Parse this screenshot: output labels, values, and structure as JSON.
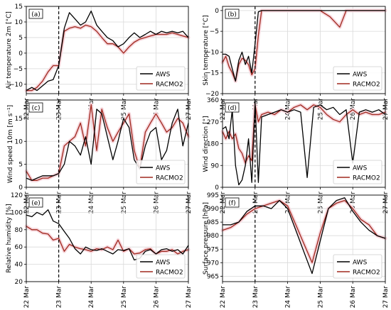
{
  "figure": {
    "x_ticks": [
      "22 Mar",
      "23 Mar",
      "24 Mar",
      "25 Mar",
      "26 Mar",
      "27 Mar"
    ],
    "event_line_x": 23.0,
    "colors": {
      "AWS": "#000000",
      "RACMO2": "#a0281e",
      "grid": "#d9d9d9",
      "shade": "#f6d6dc"
    }
  },
  "chart_data": [
    {
      "type": "line",
      "panel": "(a)",
      "ylabel": "Air temperature 2m [°C]",
      "ylim": [
        -13,
        15
      ],
      "yticks": [
        -10,
        -5,
        0,
        5,
        10,
        15
      ],
      "legend": "bottom-right",
      "grid": true,
      "series": [
        {
          "name": "AWS",
          "x": [
            22.0,
            22.17,
            22.33,
            22.5,
            22.67,
            22.83,
            23.0,
            23.17,
            23.33,
            23.5,
            23.67,
            23.83,
            24.0,
            24.17,
            24.33,
            24.5,
            24.67,
            24.83,
            25.0,
            25.17,
            25.33,
            25.5,
            25.67,
            25.83,
            26.0,
            26.17,
            26.33,
            26.5,
            26.67,
            26.83,
            27.0
          ],
          "y": [
            -12,
            -11,
            -12,
            -10.5,
            -9,
            -8.5,
            -4,
            8,
            13,
            11,
            9,
            10,
            13.5,
            9,
            7,
            5,
            4,
            2,
            3,
            5,
            6.5,
            5,
            6,
            7,
            6,
            7,
            6.5,
            7,
            6.5,
            7,
            5
          ]
        },
        {
          "name": "RACMO2",
          "x": [
            22.0,
            22.17,
            22.33,
            22.5,
            22.67,
            22.83,
            23.0,
            23.17,
            23.33,
            23.5,
            23.67,
            23.83,
            24.0,
            24.17,
            24.33,
            24.5,
            24.67,
            24.83,
            25.0,
            25.17,
            25.33,
            25.5,
            25.67,
            25.83,
            26.0,
            26.17,
            26.33,
            26.5,
            26.67,
            26.83,
            27.0
          ],
          "y": [
            -12,
            -12,
            -11,
            -9,
            -6,
            -4,
            -4,
            7,
            8,
            8.5,
            8,
            9,
            8.5,
            7,
            5,
            3,
            3,
            2,
            0,
            2,
            3.5,
            4.5,
            5,
            5.5,
            6,
            6,
            6,
            6.5,
            6,
            5.5,
            5
          ]
        }
      ]
    },
    {
      "type": "line",
      "panel": "(b)",
      "ylabel": "Skin temperature [°C]",
      "ylim": [
        -20,
        1
      ],
      "yticks": [
        -20,
        -15,
        -10,
        -5,
        0
      ],
      "legend": "bottom-right",
      "grid": true,
      "series": [
        {
          "name": "AWS",
          "x": [
            22.0,
            22.1,
            22.2,
            22.3,
            22.4,
            22.5,
            22.6,
            22.7,
            22.8,
            22.9,
            23.0,
            23.1,
            23.2,
            24.0,
            25.0,
            26.0,
            27.0
          ],
          "y": [
            -10.5,
            -10.5,
            -11,
            -14,
            -17,
            -12,
            -10,
            -13,
            -11,
            -15,
            -8,
            -0.3,
            0,
            0,
            0,
            0,
            0
          ]
        },
        {
          "name": "RACMO2",
          "x": [
            22.0,
            22.1,
            22.2,
            22.3,
            22.4,
            22.5,
            22.6,
            22.7,
            22.8,
            22.9,
            23.0,
            23.1,
            23.2,
            24.0,
            25.0,
            25.3,
            25.6,
            25.8,
            26.0,
            27.0
          ],
          "y": [
            -12.5,
            -11,
            -13.5,
            -15,
            -17,
            -13,
            -11.5,
            -12,
            -13,
            -15.5,
            -14,
            -6,
            0,
            0,
            0,
            -1.5,
            -4,
            0,
            0,
            0
          ]
        }
      ]
    },
    {
      "type": "line",
      "panel": "(c)",
      "ylabel": "Wind speed 10m [m s⁻¹]",
      "ylim": [
        0,
        19
      ],
      "yticks": [
        0,
        5,
        10,
        15
      ],
      "legend": "bottom-right",
      "grid": true,
      "series": [
        {
          "name": "AWS",
          "x": [
            22.0,
            22.17,
            22.33,
            22.5,
            22.67,
            22.83,
            23.0,
            23.17,
            23.33,
            23.5,
            23.67,
            23.83,
            24.0,
            24.17,
            24.33,
            24.5,
            24.67,
            24.83,
            25.0,
            25.17,
            25.33,
            25.5,
            25.67,
            25.83,
            26.0,
            26.17,
            26.33,
            26.5,
            26.67,
            26.83,
            27.0
          ],
          "y": [
            2,
            1.5,
            2,
            2.5,
            2.5,
            2.5,
            3,
            5,
            10,
            9,
            7,
            11,
            5,
            17,
            16,
            11,
            6,
            10,
            15,
            13,
            6,
            4,
            9,
            12,
            13,
            6,
            8,
            14,
            17,
            9,
            14
          ]
        },
        {
          "name": "RACMO2",
          "x": [
            22.0,
            22.17,
            22.33,
            22.5,
            22.67,
            22.83,
            23.0,
            23.17,
            23.33,
            23.5,
            23.67,
            23.83,
            24.0,
            24.17,
            24.33,
            24.5,
            24.67,
            24.83,
            25.0,
            25.17,
            25.33,
            25.5,
            25.67,
            25.83,
            26.0,
            26.17,
            26.33,
            26.5,
            26.67,
            26.83,
            27.0
          ],
          "y": [
            3.5,
            1.5,
            1.5,
            2,
            2,
            2.5,
            3,
            9,
            10,
            11,
            14,
            9,
            18,
            8,
            17,
            13,
            10,
            12,
            14,
            16,
            8,
            4,
            12,
            14,
            16,
            14,
            12,
            13,
            15,
            14,
            11
          ]
        }
      ]
    },
    {
      "type": "line",
      "panel": "(d)",
      "ylabel": "Wind direction [°]",
      "ylim": [
        0,
        360
      ],
      "yticks": [
        0,
        90,
        180,
        270,
        360
      ],
      "legend": "bottom-right",
      "grid": true,
      "series": [
        {
          "name": "AWS",
          "x": [
            22.0,
            22.1,
            22.2,
            22.3,
            22.4,
            22.5,
            22.6,
            22.7,
            22.8,
            22.9,
            23.0,
            23.1,
            23.2,
            23.4,
            23.6,
            23.8,
            24.0,
            24.2,
            24.4,
            24.6,
            24.8,
            25.0,
            25.2,
            25.4,
            25.6,
            25.8,
            26.0,
            26.2,
            26.4,
            26.6,
            26.8,
            27.0
          ],
          "y": [
            240,
            250,
            200,
            320,
            90,
            10,
            30,
            90,
            200,
            20,
            350,
            20,
            290,
            300,
            310,
            320,
            310,
            320,
            310,
            40,
            330,
            340,
            320,
            330,
            300,
            320,
            100,
            310,
            320,
            310,
            320,
            300
          ]
        },
        {
          "name": "RACMO2",
          "x": [
            22.0,
            22.1,
            22.2,
            22.3,
            22.4,
            22.5,
            22.6,
            22.7,
            22.8,
            22.9,
            23.0,
            23.1,
            23.2,
            23.4,
            23.6,
            23.8,
            24.0,
            24.2,
            24.4,
            24.6,
            24.8,
            25.0,
            25.2,
            25.4,
            25.6,
            25.8,
            26.0,
            26.2,
            26.4,
            26.6,
            26.8,
            27.0
          ],
          "y": [
            230,
            200,
            230,
            200,
            220,
            160,
            140,
            100,
            130,
            110,
            340,
            270,
            300,
            310,
            300,
            320,
            310,
            330,
            340,
            320,
            340,
            330,
            300,
            280,
            270,
            300,
            320,
            300,
            310,
            300,
            300,
            310
          ]
        }
      ]
    },
    {
      "type": "line",
      "panel": "(e)",
      "ylabel": "Relative humidity [%]",
      "ylim": [
        20,
        120
      ],
      "yticks": [
        20,
        40,
        60,
        80,
        100,
        120
      ],
      "legend": "bottom-right",
      "grid": true,
      "series": [
        {
          "name": "AWS",
          "x": [
            22.0,
            22.17,
            22.33,
            22.5,
            22.67,
            22.83,
            23.0,
            23.17,
            23.33,
            23.5,
            23.67,
            23.83,
            24.0,
            24.17,
            24.33,
            24.5,
            24.67,
            24.83,
            25.0,
            25.17,
            25.33,
            25.5,
            25.67,
            25.83,
            26.0,
            26.17,
            26.33,
            26.5,
            26.67,
            26.83,
            27.0
          ],
          "y": [
            97,
            95,
            100,
            97,
            103,
            90,
            87,
            78,
            70,
            58,
            52,
            60,
            57,
            56,
            58,
            55,
            52,
            57,
            56,
            58,
            45,
            47,
            55,
            57,
            52,
            57,
            58,
            55,
            57,
            52,
            62
          ]
        },
        {
          "name": "RACMO2",
          "x": [
            22.0,
            22.17,
            22.33,
            22.5,
            22.67,
            22.83,
            23.0,
            23.17,
            23.33,
            23.5,
            23.67,
            23.83,
            24.0,
            24.17,
            24.33,
            24.5,
            24.67,
            24.83,
            25.0,
            25.17,
            25.33,
            25.5,
            25.67,
            25.83,
            26.0,
            26.17,
            26.33,
            26.5,
            26.67,
            26.83,
            27.0
          ],
          "y": [
            84,
            80,
            80,
            76,
            75,
            68,
            70,
            55,
            63,
            60,
            58,
            57,
            55,
            58,
            57,
            60,
            57,
            68,
            55,
            58,
            52,
            53,
            57,
            58,
            52,
            55,
            55,
            57,
            52,
            55,
            57
          ]
        }
      ]
    },
    {
      "type": "line",
      "panel": "(f)",
      "ylabel": "Surface pressure [hPa]",
      "ylim": [
        963,
        995
      ],
      "yticks": [
        965,
        970,
        975,
        980,
        985,
        990,
        995
      ],
      "legend": "bottom-right",
      "grid": true,
      "series": [
        {
          "name": "AWS",
          "x": [
            22.0,
            22.25,
            22.5,
            22.75,
            23.0,
            23.25,
            23.5,
            23.75,
            24.0,
            24.25,
            24.5,
            24.75,
            25.0,
            25.25,
            25.5,
            25.75,
            26.0,
            26.25,
            26.5,
            26.75,
            27.0
          ],
          "y": [
            984,
            984,
            985,
            989,
            991,
            991,
            990,
            993,
            990,
            982,
            974,
            966,
            978,
            990,
            993,
            994,
            989,
            985,
            982,
            980,
            979
          ]
        },
        {
          "name": "RACMO2",
          "x": [
            22.0,
            22.25,
            22.5,
            22.75,
            23.0,
            23.25,
            23.5,
            23.75,
            24.0,
            24.25,
            24.5,
            24.75,
            25.0,
            25.25,
            25.5,
            25.75,
            26.0,
            26.25,
            26.5,
            26.75,
            27.0
          ],
          "y": [
            982,
            983,
            985,
            988,
            990,
            991,
            992,
            993,
            991,
            984,
            977,
            970,
            981,
            990,
            992,
            993,
            990,
            986,
            984,
            980,
            979
          ]
        }
      ]
    }
  ]
}
